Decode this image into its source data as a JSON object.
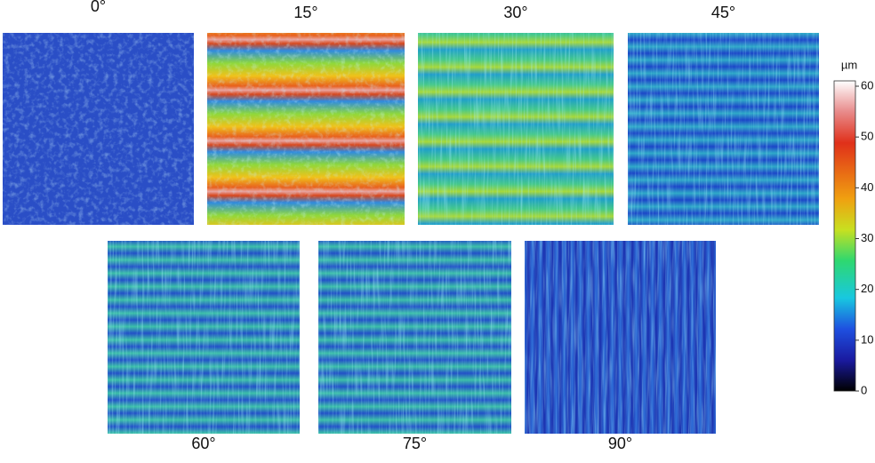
{
  "panels": [
    {
      "label": "0°"
    },
    {
      "label": "15°"
    },
    {
      "label": "30°"
    },
    {
      "label": "45°"
    },
    {
      "label": "60°"
    },
    {
      "label": "75°"
    },
    {
      "label": "90°"
    }
  ],
  "colorbar": {
    "unit": "µm",
    "ticks": [
      0,
      10,
      20,
      30,
      40,
      50,
      60
    ]
  }
}
